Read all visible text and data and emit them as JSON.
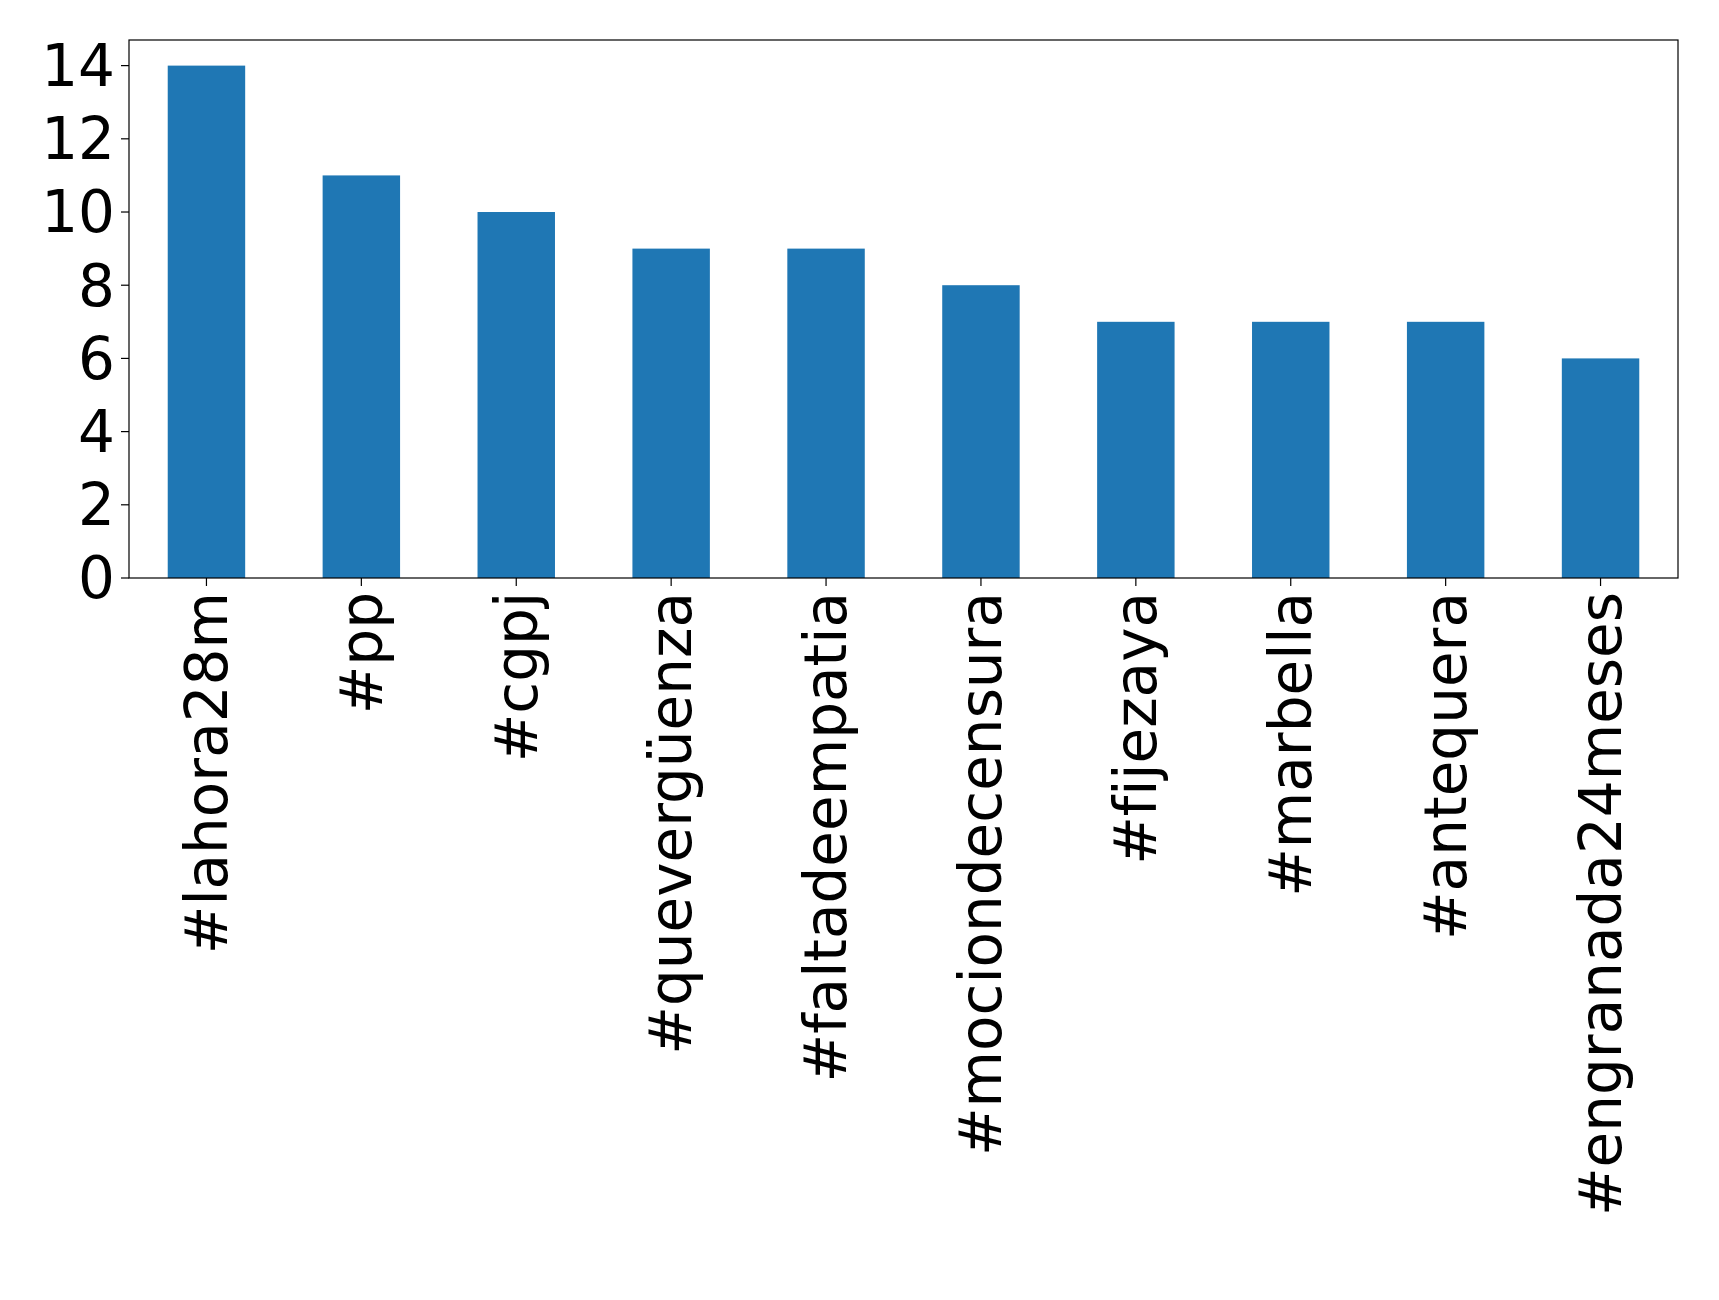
{
  "chart_data": {
    "type": "bar",
    "categories": [
      "#lahora28m",
      "#pp",
      "#cgpj",
      "#quevergüenza",
      "#faltadeempatia",
      "#mociondecensura",
      "#fijezaya",
      "#marbella",
      "#antequera",
      "#engranada24meses"
    ],
    "values": [
      14,
      11,
      10,
      9,
      9,
      8,
      7,
      7,
      7,
      6
    ],
    "color": "#1f77b4",
    "ylim": [
      0,
      14.7
    ],
    "yticks": [
      0,
      2,
      4,
      6,
      8,
      10,
      12,
      14
    ],
    "grid": false
  }
}
